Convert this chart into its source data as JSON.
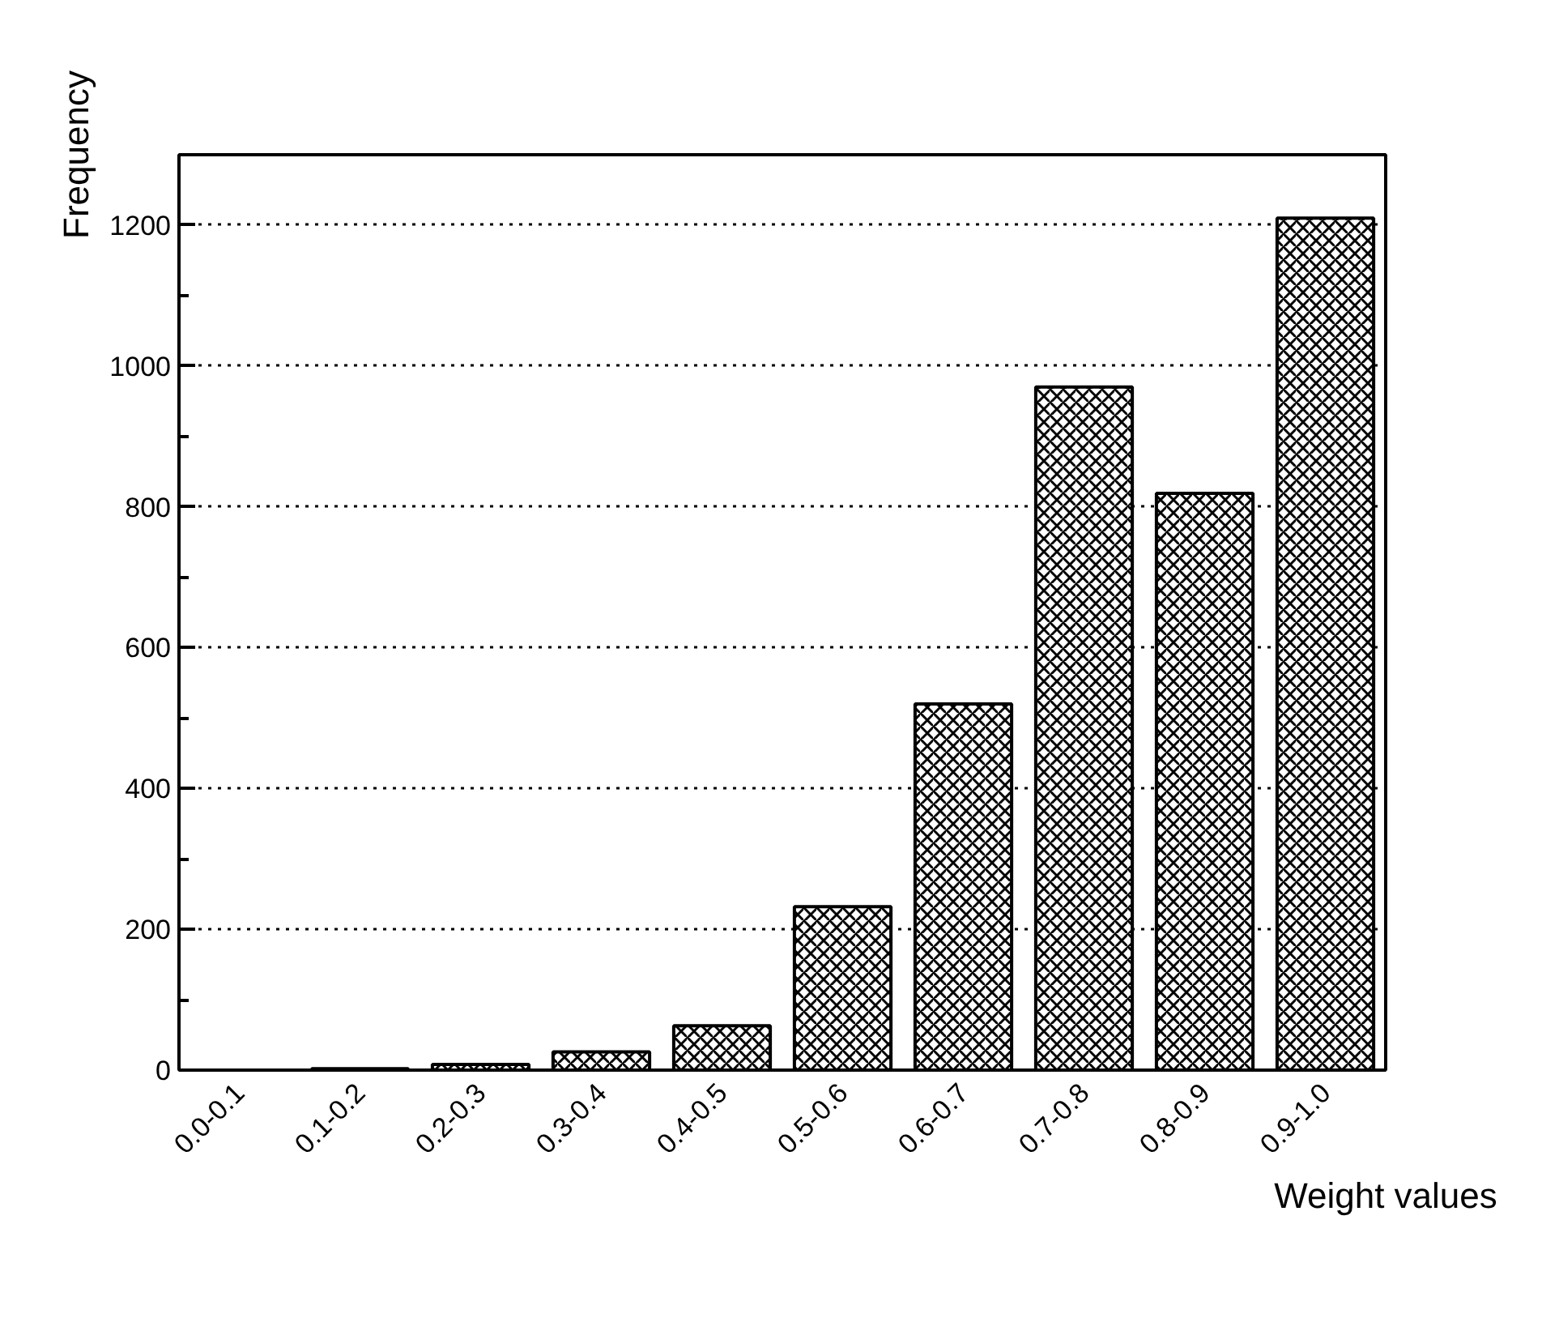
{
  "chart_data": {
    "type": "bar",
    "xlabel": "Weight values",
    "ylabel": "Frequency",
    "categories": [
      "0.0-0.1",
      "0.1-0.2",
      "0.2-0.3",
      "0.3-0.4",
      "0.4-0.5",
      "0.5-0.6",
      "0.6-0.7",
      "0.7-0.8",
      "0.8-0.9",
      "0.9-1.0"
    ],
    "values": [
      0,
      2,
      8,
      26,
      63,
      232,
      520,
      970,
      819,
      1210
    ],
    "color": "#000000",
    "ylim": [
      0,
      1300
    ],
    "yticks": [
      0,
      200,
      400,
      600,
      800,
      1000,
      1200
    ],
    "grid": "y"
  }
}
